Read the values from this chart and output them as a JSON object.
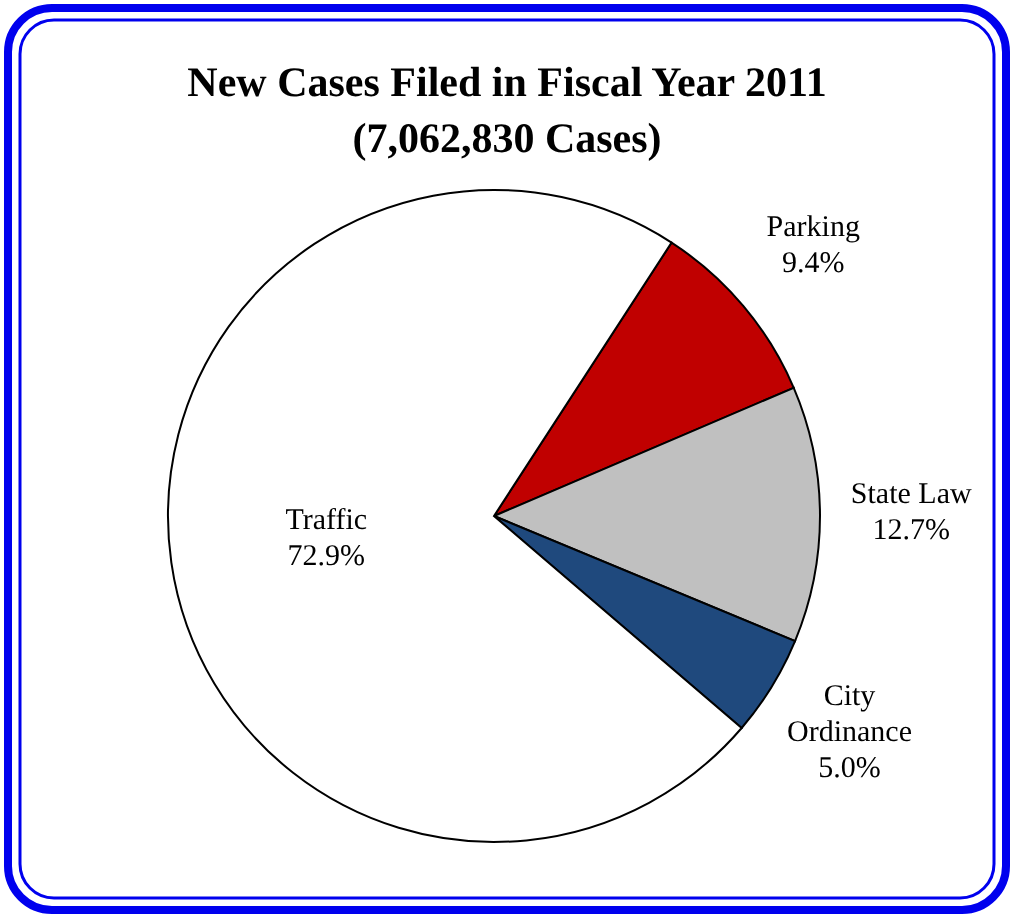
{
  "chart_data": {
    "type": "pie",
    "title": "New Cases Filed in Fiscal Year 2011",
    "subtitle": "(7,062,830 Cases)",
    "categories": [
      "Parking",
      "State Law",
      "City Ordinance",
      "Traffic"
    ],
    "values": [
      9.4,
      12.7,
      5.0,
      72.9
    ],
    "colors": [
      "#c00000",
      "#c0c0c0",
      "#1f497d",
      "#ffffff"
    ],
    "value_labels": [
      "9.4%",
      "12.7%",
      "5.0%",
      "72.9%"
    ],
    "legend": false
  }
}
